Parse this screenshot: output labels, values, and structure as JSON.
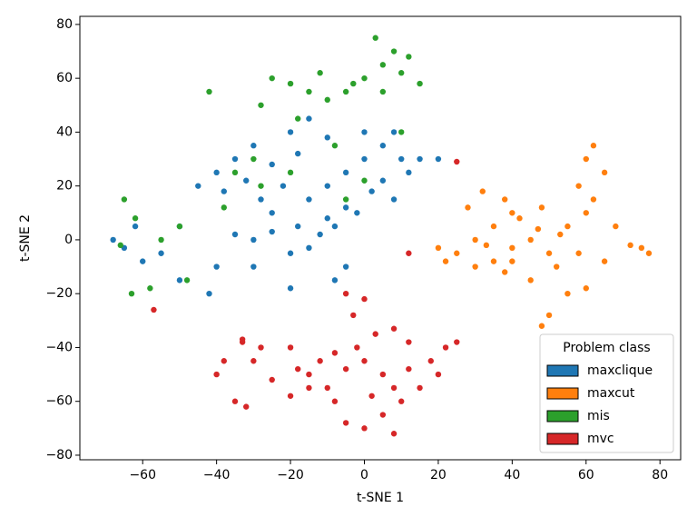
{
  "chart_data": {
    "type": "scatter",
    "xlabel": "t-SNE 1",
    "ylabel": "t-SNE 2",
    "legend_title": "Problem class",
    "legend": "lower right",
    "xlim": [
      -77,
      85.6
    ],
    "ylim": [
      -81.7,
      83
    ],
    "xticks": [
      {
        "value": -60,
        "label": "−60"
      },
      {
        "value": -40,
        "label": "−40"
      },
      {
        "value": -20,
        "label": "−20"
      },
      0,
      20,
      40,
      60,
      80
    ],
    "yticks": [
      {
        "value": -80,
        "label": "−80"
      },
      {
        "value": -60,
        "label": "−60"
      },
      {
        "value": -40,
        "label": "−40"
      },
      {
        "value": -20,
        "label": "−20"
      },
      0,
      20,
      40,
      60,
      80
    ],
    "series": [
      {
        "name": "maxclique",
        "color": "#1f77b4",
        "x": [
          -40,
          -35,
          -30,
          -25,
          -20,
          -15,
          -10,
          -18,
          -22,
          -28,
          -32,
          -38,
          -15,
          -10,
          -5,
          0,
          5,
          10,
          15,
          12,
          5,
          2,
          -2,
          -8,
          -12,
          -18,
          -25,
          -30,
          -35,
          -20,
          -15,
          -10,
          -5,
          0,
          8,
          -25,
          -40,
          -42,
          -50,
          -55,
          -60,
          -65,
          -68,
          -62,
          -50,
          -5,
          -8,
          -20,
          -45,
          8,
          -30,
          20
        ],
        "y": [
          25,
          30,
          35,
          28,
          40,
          45,
          38,
          32,
          20,
          15,
          22,
          18,
          15,
          20,
          25,
          30,
          35,
          30,
          30,
          25,
          22,
          18,
          10,
          5,
          2,
          5,
          3,
          0,
          2,
          -5,
          -3,
          8,
          12,
          40,
          40,
          10,
          -10,
          -20,
          -15,
          -5,
          -8,
          -3,
          0,
          5,
          5,
          -10,
          -15,
          -18,
          20,
          15,
          -10,
          30
        ]
      },
      {
        "name": "maxcut",
        "color": "#ff7f0e",
        "x": [
          25,
          30,
          35,
          40,
          45,
          50,
          55,
          60,
          30,
          35,
          40,
          28,
          32,
          38,
          42,
          48,
          52,
          58,
          45,
          55,
          60,
          50,
          48,
          60,
          62,
          65,
          58,
          62,
          68,
          75,
          77,
          72,
          65,
          38,
          22,
          20,
          33,
          47,
          53,
          40
        ],
        "y": [
          -5,
          0,
          5,
          10,
          0,
          -5,
          5,
          10,
          -10,
          -8,
          -3,
          12,
          18,
          15,
          8,
          12,
          -10,
          -5,
          -15,
          -20,
          -18,
          -28,
          -32,
          30,
          35,
          25,
          20,
          15,
          5,
          -3,
          -5,
          -2,
          -8,
          -12,
          -8,
          -3,
          -2,
          4,
          2,
          -8
        ]
      },
      {
        "name": "mis",
        "color": "#2ca02c",
        "x": [
          -25,
          -20,
          -15,
          -10,
          -5,
          0,
          5,
          8,
          10,
          12,
          3,
          -3,
          -28,
          -12,
          -42,
          -35,
          -28,
          -20,
          -8,
          0,
          10,
          -5,
          -38,
          -65,
          -66,
          -62,
          -55,
          -50,
          -48,
          -63,
          -58,
          -18,
          15,
          5,
          -30
        ],
        "y": [
          60,
          58,
          55,
          52,
          55,
          60,
          65,
          70,
          62,
          68,
          75,
          58,
          50,
          62,
          55,
          25,
          20,
          25,
          35,
          22,
          40,
          15,
          12,
          15,
          -2,
          8,
          0,
          5,
          -15,
          -20,
          -18,
          45,
          58,
          55,
          30
        ]
      },
      {
        "name": "mvc",
        "color": "#d62728",
        "x": [
          -35,
          -32,
          -40,
          -38,
          -30,
          -28,
          -33,
          -20,
          -15,
          -10,
          -5,
          -2,
          0,
          5,
          8,
          12,
          15,
          18,
          22,
          25,
          20,
          10,
          5,
          0,
          -5,
          8,
          -15,
          -18,
          -8,
          3,
          8,
          12,
          0,
          -5,
          -3,
          -20,
          -8,
          2,
          -25,
          -12,
          12,
          25,
          -57,
          -33
        ],
        "y": [
          -60,
          -62,
          -50,
          -45,
          -45,
          -40,
          -38,
          -40,
          -50,
          -55,
          -48,
          -40,
          -45,
          -50,
          -55,
          -48,
          -55,
          -45,
          -40,
          -38,
          -50,
          -60,
          -65,
          -70,
          -68,
          -72,
          -55,
          -48,
          -42,
          -35,
          -33,
          -38,
          -22,
          -20,
          -28,
          -58,
          -60,
          -58,
          -52,
          -45,
          -5,
          29,
          -26,
          -37
        ]
      }
    ]
  }
}
